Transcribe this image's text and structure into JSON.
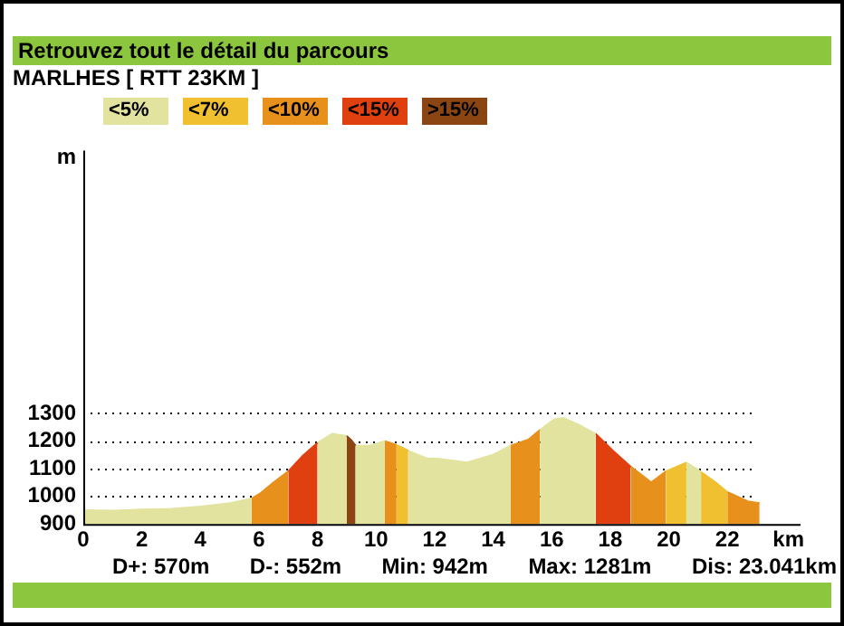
{
  "chart_data": {
    "type": "area",
    "title": "Retrouvez tout le détail du parcours",
    "subtitle": "MARLHES [ RTT 23KM ]",
    "xlabel": "km",
    "ylabel": "m",
    "xlim": [
      0,
      24.5
    ],
    "xticks": [
      0,
      2,
      4,
      6,
      8,
      10,
      12,
      14,
      16,
      18,
      20,
      22
    ],
    "ylim": [
      900,
      2250
    ],
    "yticks": [
      900,
      1000,
      1100,
      1200,
      1300
    ],
    "grid": "y",
    "legend": "top left",
    "series": [
      {
        "name": "<5%",
        "color": "#e3e3a0",
        "x": [
          0,
          1,
          2,
          3,
          4,
          5,
          5.75
        ],
        "values": [
          950,
          948,
          952,
          955,
          963,
          975,
          992
        ]
      },
      {
        "name": "<7%",
        "color": "#f0c030",
        "x": [
          10.7,
          10.9,
          11.1
        ],
        "values": [
          1185,
          1176,
          1164
        ]
      },
      {
        "name": "<10%",
        "color": "#e8901c",
        "x": [
          5.75,
          6.05,
          6.5,
          7.0
        ],
        "values": [
          992,
          1011,
          1050,
          1090
        ]
      },
      {
        "name": "<15%",
        "color": "#e04010",
        "x": [
          7.0,
          7.5,
          8.0
        ],
        "values": [
          1090,
          1147,
          1193
        ]
      },
      {
        "name": ">15%",
        "color": "#8b4513",
        "x": [
          9.0,
          9.15,
          9.3
        ],
        "values": [
          1218,
          1203,
          1183
        ]
      },
      {
        "color": "#e3e3a0",
        "x": [
          8.0,
          8.5,
          9.0
        ],
        "values": [
          1193,
          1226,
          1218
        ]
      },
      {
        "color": "#e3e3a0",
        "x": [
          9.3,
          9.8,
          10.3
        ],
        "values": [
          1183,
          1183,
          1199
        ]
      },
      {
        "color": "#e8901c",
        "x": [
          10.3,
          10.5,
          10.7
        ],
        "values": [
          1199,
          1193,
          1185
        ]
      },
      {
        "color": "#e3e3a0",
        "x": [
          11.1,
          11.75,
          12.1,
          13.1,
          14.0,
          14.6
        ],
        "values": [
          1164,
          1136,
          1136,
          1122,
          1150,
          1183
        ]
      },
      {
        "color": "#e8901c",
        "x": [
          14.6,
          15.2,
          15.6
        ],
        "values": [
          1183,
          1205,
          1240
        ]
      },
      {
        "color": "#e3e3a0",
        "x": [
          15.6,
          16.1,
          16.4,
          16.9,
          17.5
        ],
        "values": [
          1240,
          1279,
          1283,
          1260,
          1226
        ]
      },
      {
        "color": "#e04010",
        "x": [
          17.5,
          18.1,
          18.7
        ],
        "values": [
          1226,
          1164,
          1107
        ]
      },
      {
        "color": "#e8901c",
        "x": [
          18.7,
          19.4,
          19.9
        ],
        "values": [
          1107,
          1050,
          1090
        ]
      },
      {
        "color": "#f0c030",
        "x": [
          19.9,
          20.6
        ],
        "values": [
          1090,
          1122
        ]
      },
      {
        "color": "#e3e3a0",
        "x": [
          20.6,
          21.1
        ],
        "values": [
          1122,
          1088
        ]
      },
      {
        "color": "#f0c030",
        "x": [
          21.1,
          21.6,
          22.0
        ],
        "values": [
          1088,
          1050,
          1015
        ]
      },
      {
        "color": "#e8901c",
        "x": [
          22.0,
          22.7,
          23.1
        ],
        "values": [
          1015,
          982,
          975
        ]
      }
    ],
    "annotations": [
      "D+: 570m",
      "D-: 552m",
      "Min: 942m",
      "Max: 1281m",
      "Dis: 23.041km"
    ]
  }
}
